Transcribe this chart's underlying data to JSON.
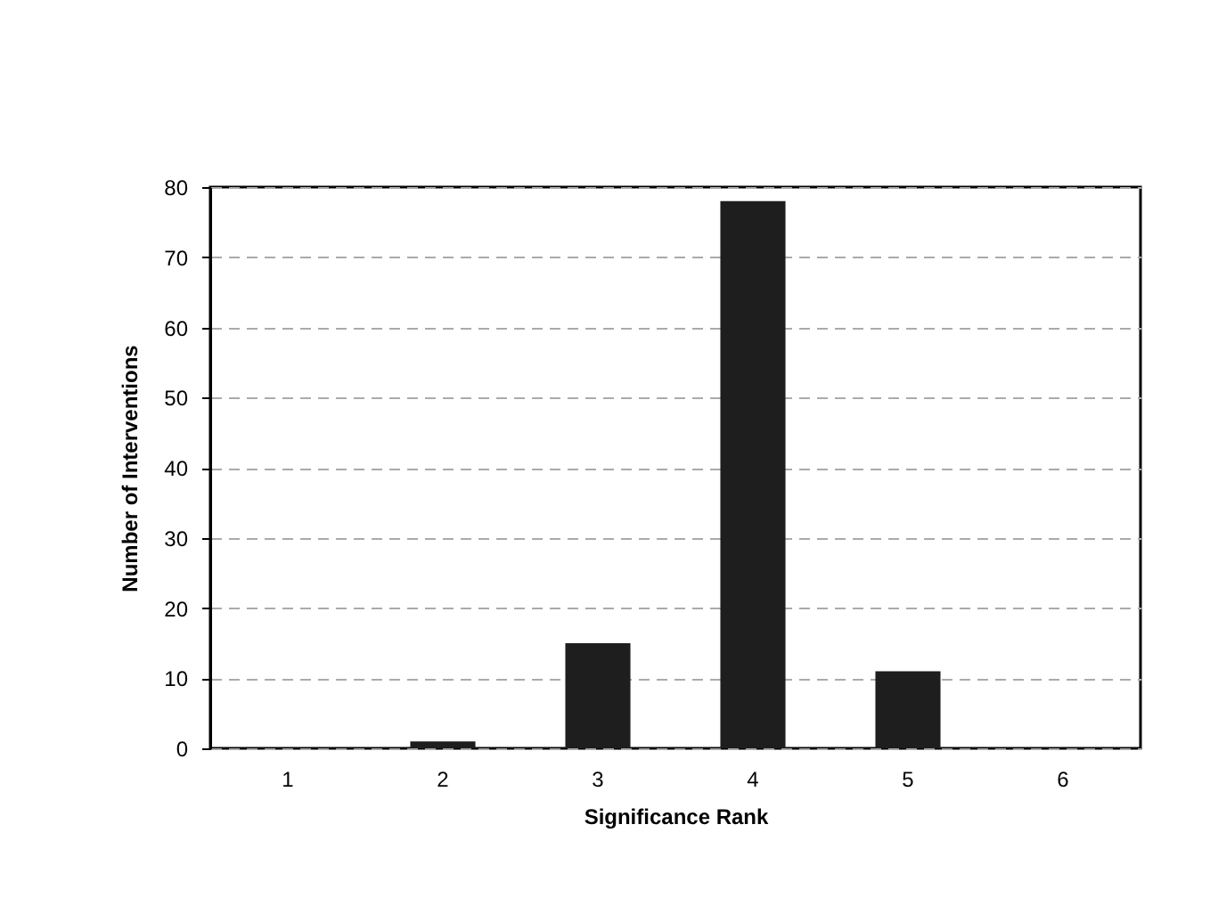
{
  "chart_data": {
    "type": "bar",
    "xlabel": "Significance Rank",
    "ylabel": "Number of Interventions",
    "categories": [
      "1",
      "2",
      "3",
      "4",
      "5",
      "6"
    ],
    "values": [
      0,
      1,
      15,
      78,
      11,
      0
    ],
    "color": "#1e1e1e",
    "ylim": [
      0,
      80
    ],
    "yticks": [
      0,
      10,
      20,
      30,
      40,
      50,
      60,
      70,
      80
    ],
    "grid": "y"
  }
}
